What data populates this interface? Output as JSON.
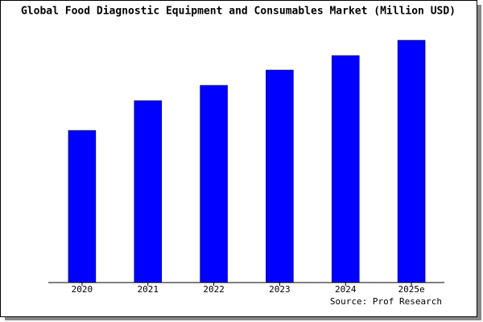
{
  "chart_data": {
    "type": "bar",
    "title": "Global Food Diagnostic Equipment and Consumables Market (Million USD)",
    "categories": [
      "2020",
      "2021",
      "2022",
      "2023",
      "2024",
      "2025e"
    ],
    "values": [
      189,
      226,
      245,
      264,
      282,
      301
    ],
    "color": "#0000ff",
    "source": "Source: Prof Research"
  }
}
